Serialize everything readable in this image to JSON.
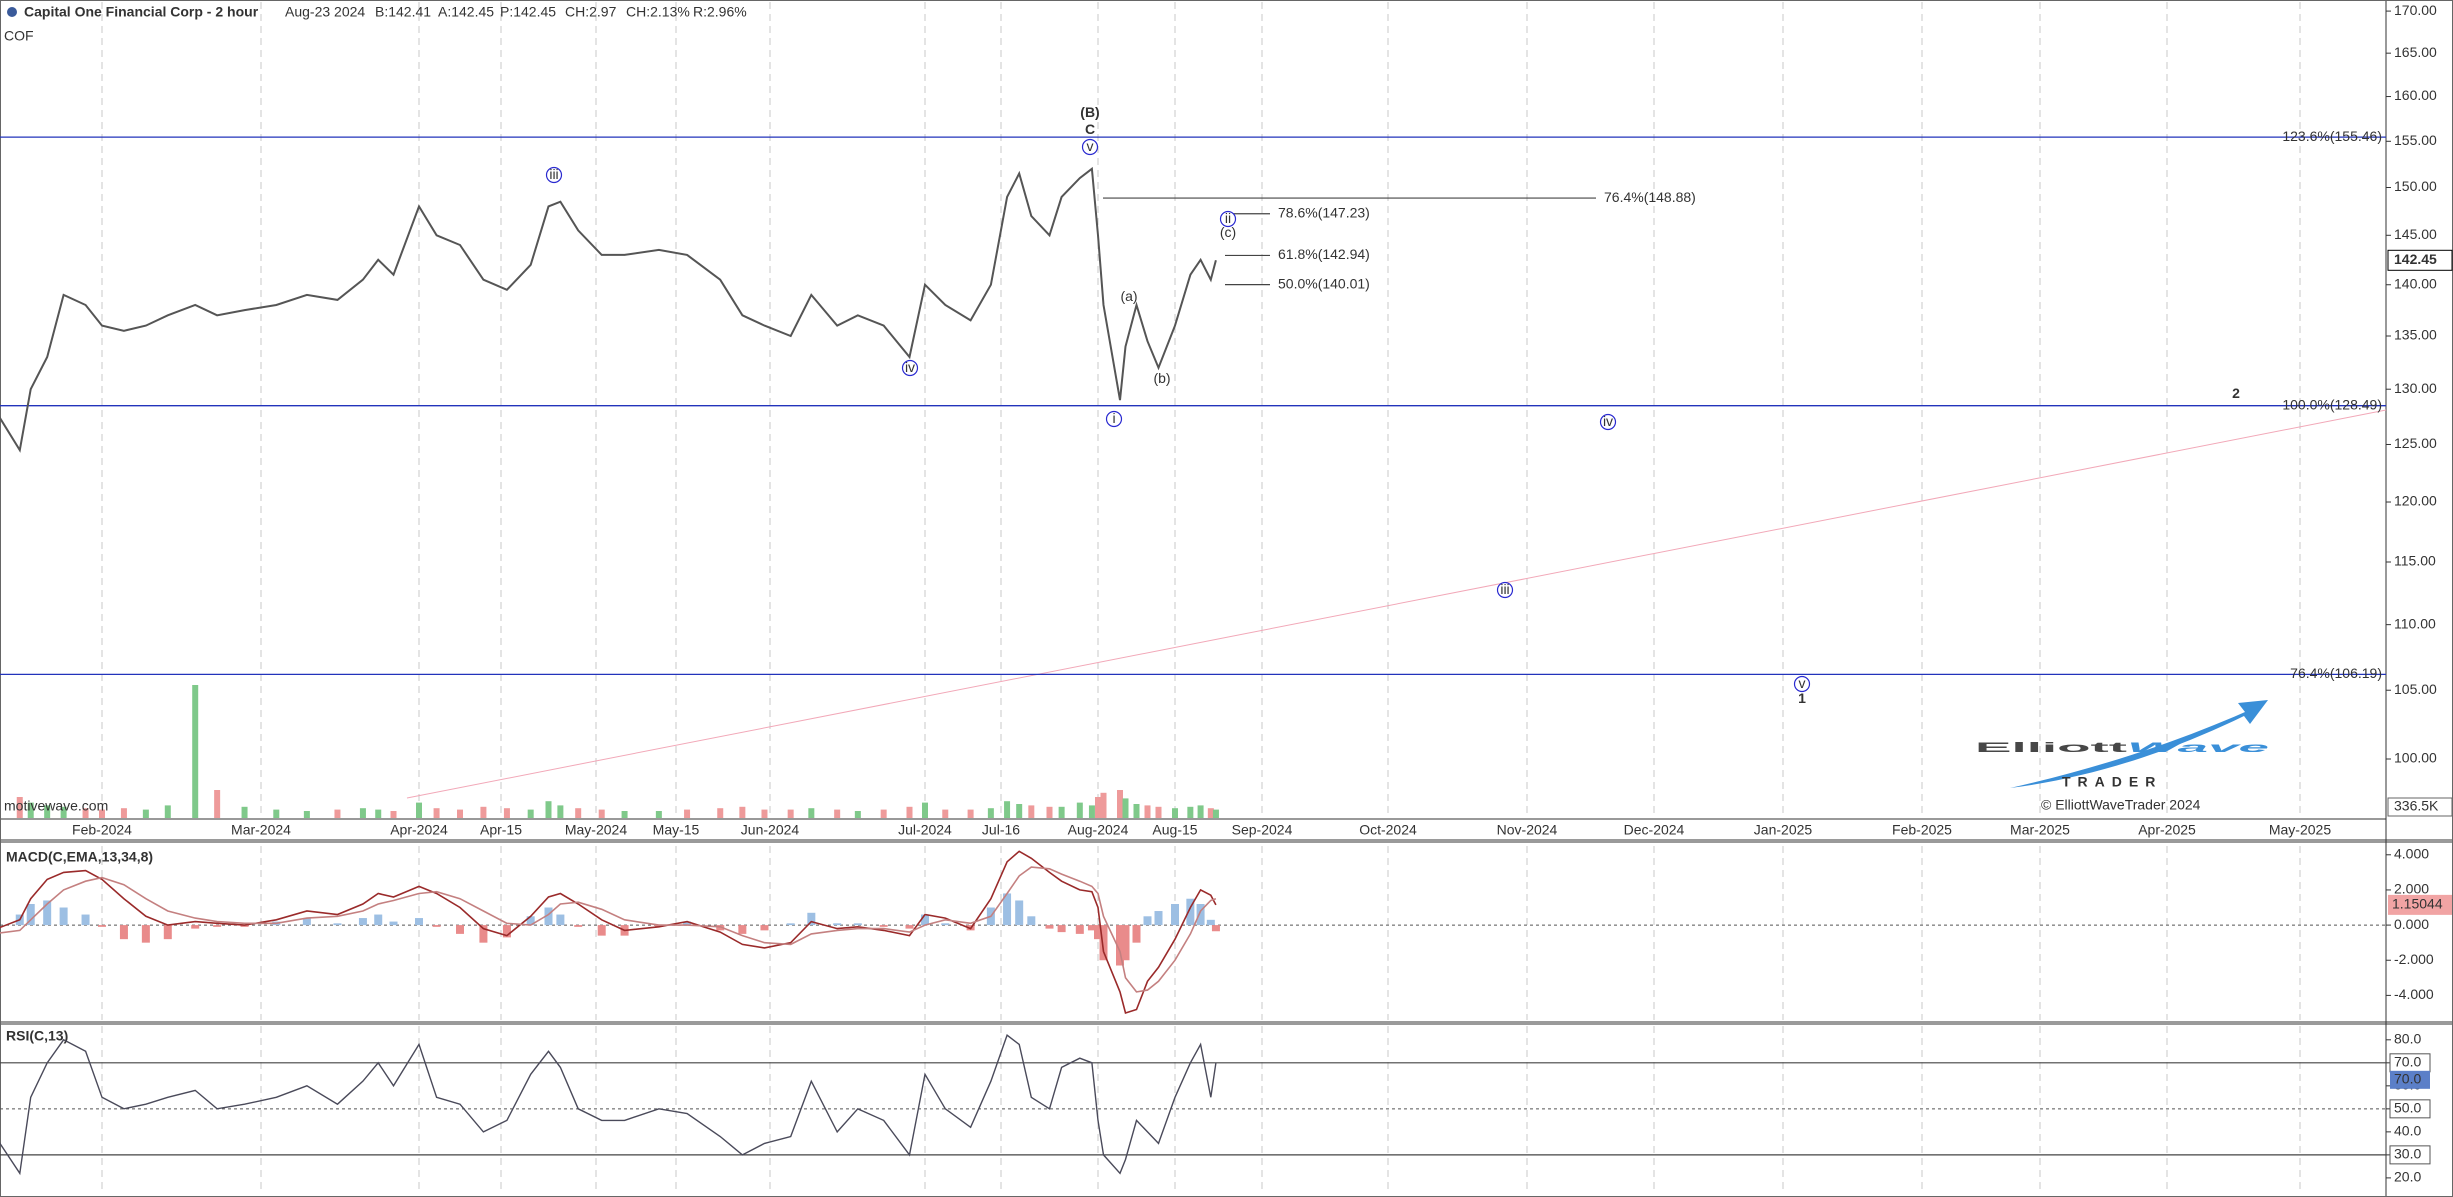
{
  "chart_data": {
    "type": "line",
    "title": "Capital One Financial Corp - 2 hour",
    "symbol": "COF",
    "quote": [
      {
        "text": "Aug-23 2024",
        "color": "#555555"
      },
      {
        "text": "B:142.41",
        "color": "#555555"
      },
      {
        "text": "A:142.45",
        "color": "#555555"
      },
      {
        "text": "P:142.45",
        "color": "#555555"
      },
      {
        "text": "CH:2.97",
        "color": "#1a9a1a"
      },
      {
        "text": "CH:2.13%",
        "color": "#1a9a1a"
      },
      {
        "text": "R:2.96%",
        "color": "#e08a00"
      }
    ],
    "source": "motivewave.com",
    "logo": {
      "first": "Elliott",
      "accent": "Wave",
      "sub": "TRADER",
      "copyright": "© ElliottWaveTrader 2024"
    },
    "log": true,
    "color": "#555555",
    "x": [
      "2024-01-12",
      "2024-01-17",
      "2024-01-19",
      "2024-01-22",
      "2024-01-25",
      "2024-01-29",
      "2024-02-01",
      "2024-02-05",
      "2024-02-09",
      "2024-02-13",
      "2024-02-18",
      "2024-02-22",
      "2024-02-27",
      "2024-03-04",
      "2024-03-10",
      "2024-03-16",
      "2024-03-21",
      "2024-03-24",
      "2024-03-27",
      "2024-04-01",
      "2024-04-04",
      "2024-04-08",
      "2024-04-12",
      "2024-04-16",
      "2024-04-20",
      "2024-04-23",
      "2024-04-25",
      "2024-04-28",
      "2024-05-02",
      "2024-05-06",
      "2024-05-12",
      "2024-05-17",
      "2024-05-23",
      "2024-05-27",
      "2024-05-31",
      "2024-06-05",
      "2024-06-09",
      "2024-06-14",
      "2024-06-18",
      "2024-06-23",
      "2024-06-28",
      "2024-07-01",
      "2024-07-05",
      "2024-07-10",
      "2024-07-14",
      "2024-07-17",
      "2024-07-19",
      "2024-07-21",
      "2024-07-24",
      "2024-07-26",
      "2024-07-29",
      "2024-07-31",
      "2024-08-01",
      "2024-08-02",
      "2024-08-05",
      "2024-08-06",
      "2024-08-08",
      "2024-08-10",
      "2024-08-12",
      "2024-08-15",
      "2024-08-18",
      "2024-08-20",
      "2024-08-22",
      "2024-08-23"
    ],
    "values": [
      128.5,
      124.5,
      130,
      133,
      139,
      138,
      136,
      135.5,
      136,
      137,
      138,
      137,
      137.5,
      138,
      139,
      138.5,
      140.5,
      142.5,
      141,
      148,
      145,
      144,
      140.5,
      139.5,
      142,
      148,
      148.5,
      145.5,
      143,
      143,
      143.5,
      143,
      140.5,
      137,
      136,
      135,
      139,
      136,
      137,
      136,
      133,
      140,
      138,
      136.5,
      140,
      149,
      151.5,
      147,
      145,
      149,
      151,
      152,
      145,
      138,
      129,
      134,
      138,
      134.5,
      132,
      136,
      141,
      142.5,
      140.5,
      142.45
    ],
    "ylim": [
      95.9,
      171.1
    ],
    "yticks": [
      {
        "value": 100,
        "label": "100.00"
      },
      {
        "value": 105,
        "label": "105.00"
      },
      {
        "value": 110,
        "label": "110.00"
      },
      {
        "value": 115,
        "label": "115.00"
      },
      {
        "value": 120,
        "label": "120.00"
      },
      {
        "value": 125,
        "label": "125.00"
      },
      {
        "value": 130,
        "label": "130.00"
      },
      {
        "value": 135,
        "label": "135.00"
      },
      {
        "value": 140,
        "label": "140.00"
      },
      {
        "value": 145,
        "label": "145.00"
      },
      {
        "value": 150,
        "label": "150.00"
      },
      {
        "value": 155,
        "label": "155.00"
      },
      {
        "value": 160,
        "label": "160.00"
      },
      {
        "value": 165,
        "label": "165.00"
      },
      {
        "value": 170,
        "label": "170.00"
      }
    ],
    "xticks": [
      {
        "value": "2024-02",
        "label": "Feb-2024"
      },
      {
        "value": "2024-03",
        "label": "Mar-2024"
      },
      {
        "value": "2024-04",
        "label": "Apr-2024"
      },
      {
        "value": "2024-04-15",
        "label": "Apr-15"
      },
      {
        "value": "2024-05",
        "label": "May-2024"
      },
      {
        "value": "2024-05-15",
        "label": "May-15"
      },
      {
        "value": "2024-06",
        "label": "Jun-2024"
      },
      {
        "value": "2024-07",
        "label": "Jul-2024"
      },
      {
        "value": "2024-07-16",
        "label": "Jul-16"
      },
      {
        "value": "2024-08",
        "label": "Aug-2024"
      },
      {
        "value": "2024-08-15",
        "label": "Aug-15"
      },
      {
        "value": "2024-09",
        "label": "Sep-2024"
      },
      {
        "value": "2024-10",
        "label": "Oct-2024"
      },
      {
        "value": "2024-11",
        "label": "Nov-2024"
      },
      {
        "value": "2024-12",
        "label": "Dec-2024"
      },
      {
        "value": "2025-01",
        "label": "Jan-2025"
      },
      {
        "value": "2025-02",
        "label": "Feb-2025"
      },
      {
        "value": "2025-03",
        "label": "Mar-2025"
      },
      {
        "value": "2025-04",
        "label": "Apr-2025"
      },
      {
        "value": "2025-05",
        "label": "May-2025"
      }
    ],
    "grid": true,
    "level_color": "#2233bb",
    "levels": [
      {
        "value": 155.46,
        "label": "123.6%(155.46)"
      },
      {
        "value": 128.49,
        "label": "100.0%(128.49)"
      },
      {
        "value": 106.19,
        "label": "76.4%(106.19)"
      }
    ],
    "fib_color": "#444444",
    "fib_levels": [
      {
        "value": 148.88,
        "label": "76.4%(148.88)"
      },
      {
        "value": 147.23,
        "label": "78.6%(147.23)"
      },
      {
        "value": 142.94,
        "label": "61.8%(142.94)"
      },
      {
        "value": 140.01,
        "label": "50.0%(140.01)"
      }
    ],
    "wave_color": "#2a2ad0",
    "wave_labels": [
      {
        "text": "(B)",
        "bold": true
      },
      {
        "text": "C",
        "bold": true
      },
      {
        "text": "v",
        "circled": true
      },
      {
        "text": "iii",
        "circled": true
      },
      {
        "text": "iv",
        "circled": true
      },
      {
        "text": "i",
        "circled": true
      },
      {
        "text": "(a)"
      },
      {
        "text": "(b)"
      },
      {
        "text": "ii",
        "circled": true
      },
      {
        "text": "(c)"
      },
      {
        "text": "2",
        "bold": true
      },
      {
        "text": "iv",
        "circled": true
      },
      {
        "text": "iii",
        "circled": true
      },
      {
        "text": "v",
        "circled": true
      },
      {
        "text": "1",
        "bold": true
      }
    ],
    "volume": {
      "label": "336.5K",
      "ylim": [
        0,
        1000000
      ],
      "up_color": "#7fc98a",
      "down_color": "#ee9a9a",
      "values": [
        120000,
        150000,
        110000,
        90000,
        80000,
        70000,
        60000,
        70000,
        60000,
        90000,
        950000,
        200000,
        80000,
        60000,
        50000,
        60000,
        70000,
        60000,
        50000,
        110000,
        70000,
        60000,
        80000,
        70000,
        60000,
        120000,
        90000,
        70000,
        60000,
        50000,
        50000,
        60000,
        70000,
        80000,
        60000,
        60000,
        70000,
        60000,
        50000,
        60000,
        80000,
        110000,
        60000,
        60000,
        70000,
        120000,
        100000,
        90000,
        80000,
        80000,
        110000,
        90000,
        150000,
        180000,
        200000,
        140000,
        100000,
        90000,
        80000,
        70000,
        80000,
        90000,
        70000,
        60000
      ]
    },
    "macd": {
      "title": "MACD(C,EMA,13,34,8)",
      "ylim": [
        -5.4,
        4.5
      ],
      "yticks": [
        {
          "value": -4,
          "label": "-4.000"
        },
        {
          "value": -2,
          "label": "-2.000"
        },
        {
          "value": 0,
          "label": "0.000"
        },
        {
          "value": 2,
          "label": "2.000"
        },
        {
          "value": 4,
          "label": "4.000"
        }
      ],
      "series": [
        {
          "color": "#9a2a2a",
          "values": [
            -0.3,
            0.3,
            1.5,
            2.6,
            3.0,
            3.1,
            2.6,
            1.5,
            0.5,
            0.0,
            0.2,
            0.1,
            0.0,
            0.3,
            0.8,
            0.6,
            1.2,
            1.8,
            1.6,
            2.2,
            1.8,
            1.0,
            -0.2,
            -0.6,
            0.5,
            1.6,
            1.8,
            1.2,
            0.3,
            -0.3,
            -0.1,
            0.2,
            -0.4,
            -1.1,
            -1.3,
            -1.0,
            0.2,
            -0.2,
            -0.1,
            -0.3,
            -0.6,
            0.6,
            0.4,
            -0.2,
            1.5,
            3.6,
            4.2,
            3.8,
            3.0,
            2.5,
            2.0,
            1.9,
            1.0,
            -1.5,
            -3.8,
            -5.0,
            -4.8,
            -3.2,
            -2.4,
            -0.8,
            1.0,
            2.0,
            1.7,
            1.15044
          ]
        },
        {
          "color": "#c48080",
          "values": [
            -0.5,
            -0.3,
            0.3,
            1.2,
            2.0,
            2.5,
            2.7,
            2.3,
            1.5,
            0.8,
            0.4,
            0.2,
            0.1,
            0.1,
            0.4,
            0.5,
            0.8,
            1.2,
            1.4,
            1.8,
            1.9,
            1.5,
            0.8,
            0.1,
            0.0,
            0.6,
            1.2,
            1.3,
            0.9,
            0.3,
            0.0,
            0.0,
            -0.1,
            -0.6,
            -1.0,
            -1.1,
            -0.5,
            -0.3,
            -0.2,
            -0.2,
            -0.4,
            0.0,
            0.3,
            0.1,
            0.5,
            1.8,
            2.8,
            3.3,
            3.2,
            2.9,
            2.5,
            2.2,
            1.8,
            0.5,
            -1.5,
            -3.0,
            -3.8,
            -3.7,
            -3.2,
            -2.0,
            -0.5,
            0.8,
            1.4,
            1.5
          ]
        }
      ],
      "histogram": [
        0.2,
        0.6,
        1.2,
        1.4,
        1.0,
        0.6,
        -0.1,
        -0.8,
        -1.0,
        -0.8,
        -0.2,
        -0.1,
        -0.1,
        0.2,
        0.4,
        0.1,
        0.4,
        0.6,
        0.2,
        0.4,
        -0.1,
        -0.5,
        -1.0,
        -0.7,
        0.5,
        1.0,
        0.6,
        -0.1,
        -0.6,
        -0.6,
        -0.1,
        0.2,
        -0.3,
        -0.5,
        -0.3,
        0.1,
        0.7,
        0.1,
        0.1,
        -0.1,
        -0.2,
        0.6,
        0.1,
        -0.3,
        1.0,
        1.8,
        1.4,
        0.5,
        -0.2,
        -0.4,
        -0.5,
        -0.3,
        -0.8,
        -2.0,
        -2.3,
        -2.0,
        -1.0,
        0.5,
        0.8,
        1.2,
        1.5,
        1.2,
        0.3,
        -0.35
      ],
      "up_color": "#9dbfe3",
      "down_color": "#e98b8b"
    },
    "rsi": {
      "title": "RSI(C,13)",
      "ylim": [
        13,
        86
      ],
      "yticks": [
        {
          "value": 20,
          "label": "20.0"
        },
        {
          "value": 30,
          "label": "30.0"
        },
        {
          "value": 40,
          "label": "40.0"
        },
        {
          "value": 50,
          "label": "50.0"
        },
        {
          "value": 60,
          "label": "60.0"
        },
        {
          "value": 70,
          "label": "70.0"
        },
        {
          "value": 80,
          "label": "80.0"
        }
      ],
      "levels": [
        70,
        30
      ],
      "midline": 50,
      "color": "#4a4a5a",
      "values": [
        40,
        22,
        55,
        70,
        80,
        75,
        55,
        50,
        52,
        55,
        58,
        50,
        52,
        55,
        60,
        52,
        62,
        70,
        60,
        78,
        55,
        52,
        40,
        45,
        65,
        75,
        68,
        50,
        45,
        45,
        50,
        48,
        38,
        30,
        35,
        38,
        62,
        40,
        50,
        45,
        30,
        65,
        50,
        42,
        62,
        82,
        78,
        55,
        50,
        68,
        72,
        70,
        45,
        30,
        22,
        28,
        45,
        40,
        35,
        55,
        70,
        78,
        55,
        70
      ],
      "value_labels": {
        "63": "70.0"
      },
      "label_color": "#5b7fc8"
    }
  }
}
